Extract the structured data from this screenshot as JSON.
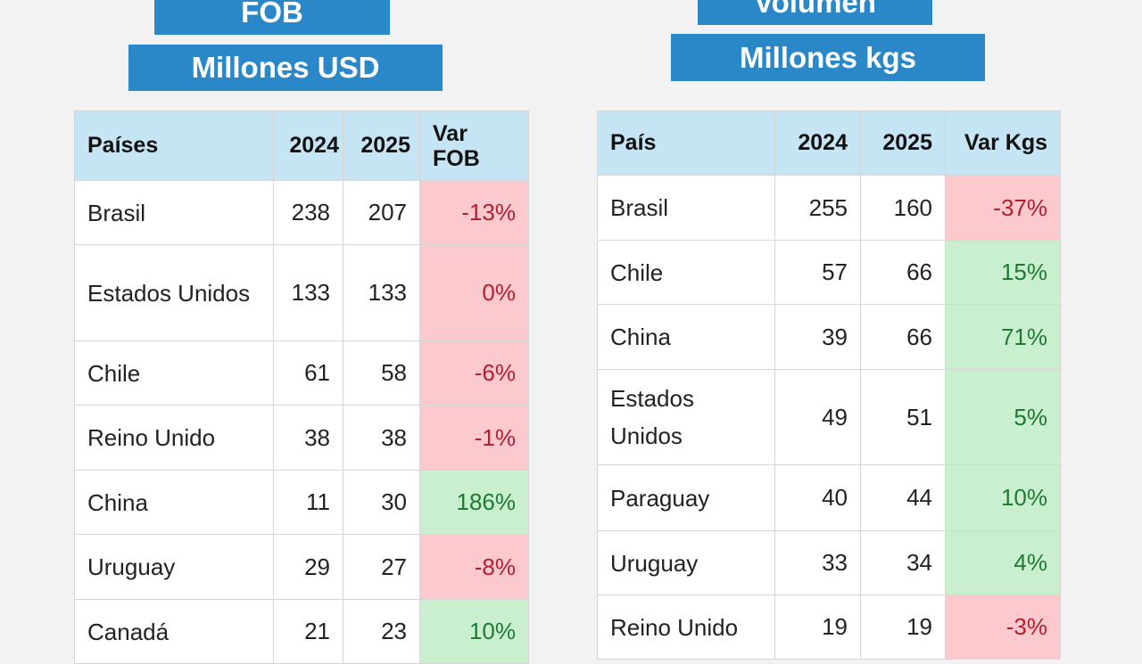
{
  "fob": {
    "title": "FOB",
    "subtitle": "Millones USD",
    "headers": {
      "country": "Países",
      "y1": "2024",
      "y2": "2025",
      "var_line1": "Var",
      "var_line2": "FOB"
    },
    "rows": [
      {
        "country": "Brasil",
        "y1": "238",
        "y2": "207",
        "var": "-13%",
        "trend": "neg"
      },
      {
        "country": "Estados Unidos",
        "y1": "133",
        "y2": "133",
        "var": "0%",
        "trend": "neg"
      },
      {
        "country": "Chile",
        "y1": "61",
        "y2": "58",
        "var": "-6%",
        "trend": "neg"
      },
      {
        "country": "Reino Unido",
        "y1": "38",
        "y2": "38",
        "var": "-1%",
        "trend": "neg"
      },
      {
        "country": "China",
        "y1": "11",
        "y2": "30",
        "var": "186%",
        "trend": "pos"
      },
      {
        "country": "Uruguay",
        "y1": "29",
        "y2": "27",
        "var": "-8%",
        "trend": "neg"
      },
      {
        "country": "Canadá",
        "y1": "21",
        "y2": "23",
        "var": "10%",
        "trend": "pos"
      }
    ]
  },
  "kgs": {
    "title": "Volumen",
    "subtitle": "Millones kgs",
    "headers": {
      "country": "País",
      "y1": "2024",
      "y2": "2025",
      "var": "Var Kgs"
    },
    "rows": [
      {
        "country": "Brasil",
        "y1": "255",
        "y2": "160",
        "var": "-37%",
        "trend": "neg"
      },
      {
        "country": "Chile",
        "y1": "57",
        "y2": "66",
        "var": "15%",
        "trend": "pos"
      },
      {
        "country": "China",
        "y1": "39",
        "y2": "66",
        "var": "71%",
        "trend": "pos"
      },
      {
        "country": "Estados Unidos",
        "y1": "49",
        "y2": "51",
        "var": "5%",
        "trend": "pos"
      },
      {
        "country": "Paraguay",
        "y1": "40",
        "y2": "44",
        "var": "10%",
        "trend": "pos"
      },
      {
        "country": "Uruguay",
        "y1": "33",
        "y2": "34",
        "var": "4%",
        "trend": "pos"
      },
      {
        "country": "Reino Unido",
        "y1": "19",
        "y2": "19",
        "var": "-3%",
        "trend": "neg"
      }
    ]
  },
  "colors": {
    "badge": "#2a88c8",
    "header": "#c5e4f4",
    "negative_bg": "#fcc9cf",
    "negative_text": "#b21f2d",
    "positive_bg": "#c9efcf",
    "positive_text": "#1f7a33"
  }
}
